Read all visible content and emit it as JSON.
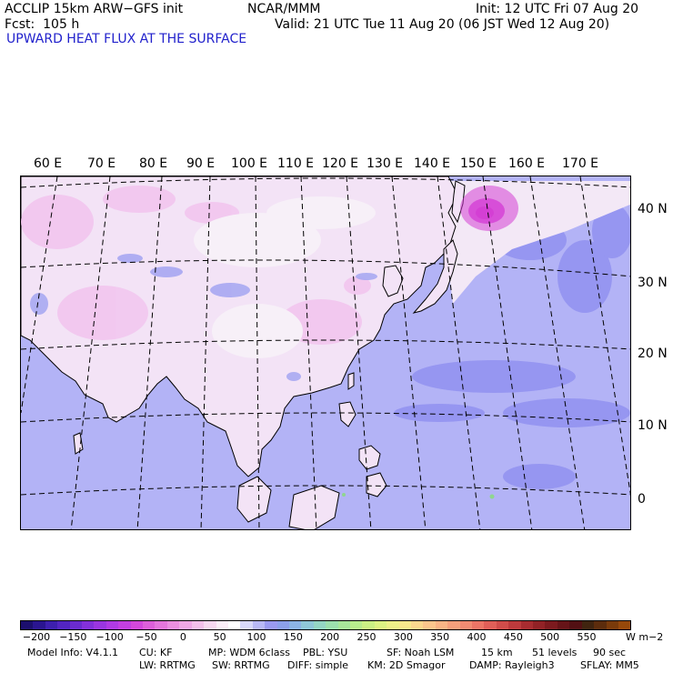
{
  "header": {
    "model_title": "ACCLIP 15km ARW−GFS init",
    "center": "NCAR/MMM",
    "init": "Init: 12 UTC Fri 07 Aug 20",
    "forecast": "Fcst:  105 h",
    "valid": "Valid: 21 UTC Tue 11 Aug 20 (06 JST Wed 12 Aug 20)",
    "field_title": "UPWARD HEAT FLUX AT THE SURFACE"
  },
  "map": {
    "lon_labels": [
      "60 E",
      "70 E",
      "80 E",
      "90 E",
      "100 E",
      "110 E",
      "120 E",
      "130 E",
      "140 E",
      "150 E",
      "160 E",
      "170 E"
    ],
    "lat_labels": [
      "40 N",
      "30 N",
      "20 N",
      "10 N",
      "0"
    ],
    "colors": {
      "ocean": "#b3b3f6",
      "ocean_patch": "#8f8ff0",
      "land_pale": "#f3e3f6",
      "land_pink": "#f2c6ef",
      "land_light": "#f7f0f8",
      "flux_max": "#d43fd4",
      "coast": "#000000",
      "grid": "#000000"
    }
  },
  "colorbar": {
    "colors": [
      "#1c0f6e",
      "#2a1590",
      "#3d1fae",
      "#5225c1",
      "#6a2bcf",
      "#8330da",
      "#9a35e0",
      "#b03ae3",
      "#c33fe1",
      "#d348db",
      "#dd5fd9",
      "#e476dc",
      "#ea8fe0",
      "#efa8e5",
      "#f3c0ea",
      "#f7d8f0",
      "#fbeef7",
      "#ffffff",
      "#d8d8fa",
      "#b8b8f5",
      "#9a9af0",
      "#8ca0ea",
      "#8cb4e4",
      "#8fc8d8",
      "#94d6c4",
      "#9cdfae",
      "#a8e69a",
      "#b8ec8c",
      "#cbf084",
      "#def283",
      "#eef088",
      "#f8e88c",
      "#fbd88e",
      "#fbc68c",
      "#f9b485",
      "#f6a07c",
      "#f28b72",
      "#ec7566",
      "#e05f58",
      "#d04c4a",
      "#bd3a3c",
      "#a82c30",
      "#922226",
      "#7c1a1e",
      "#661418",
      "#521013",
      "#40240f",
      "#5c2c0c",
      "#7a3a0a",
      "#96480a"
    ],
    "ticks": [
      "−200",
      "−150",
      "−100",
      "−50",
      "0",
      "50",
      "100",
      "150",
      "200",
      "250",
      "300",
      "350",
      "400",
      "450",
      "500",
      "550"
    ],
    "units": "W m−2"
  },
  "footer": {
    "model_info": "Model Info: V4.1.1",
    "cu": "CU: KF",
    "mp": "MP: WDM 6class",
    "pbl": "PBL: YSU",
    "sf": "SF: Noah LSM",
    "res": "15 km",
    "levels": "51 levels",
    "dt": "90 sec",
    "lw": "LW: RRTMG",
    "sw": "SW: RRTMG",
    "diff": "DIFF: simple",
    "km": "KM: 2D Smagor",
    "damp": "DAMP: Rayleigh3",
    "sflay": "SFLAY: MM5"
  }
}
